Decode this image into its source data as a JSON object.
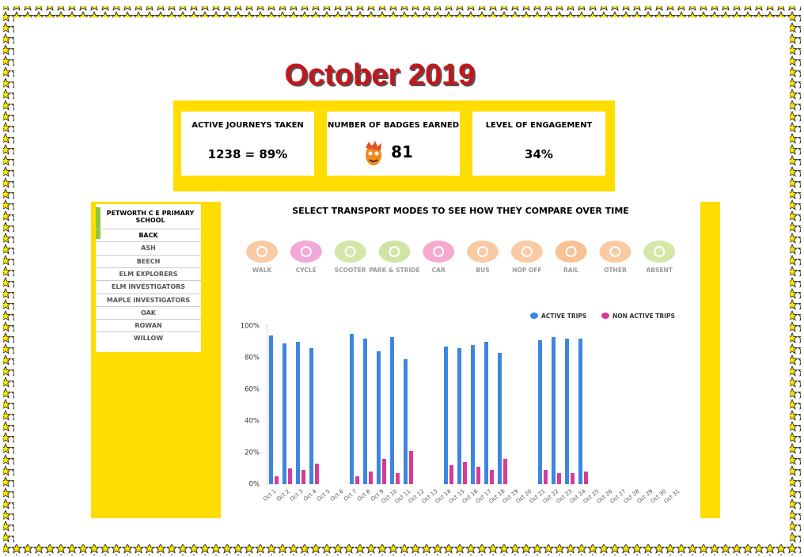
{
  "header": {
    "title": "October 2019"
  },
  "stats": [
    {
      "label": "ACTIVE JOURNEYS TAKEN",
      "value": "1238 = 89%"
    },
    {
      "label": "NUMBER OF BADGES EARNED",
      "value": "81"
    },
    {
      "label": "LEVEL OF ENGAGEMENT",
      "value": "34%"
    }
  ],
  "sidebar": {
    "school": "PETWORTH C E PRIMARY SCHOOL",
    "items": [
      "BACK",
      "ASH",
      "BEECH",
      "ELM EXPLORERS",
      "ELM INVESTIGATORS",
      "MAPLE INVESTIGATORS",
      "OAK",
      "ROWAN",
      "WILLOW"
    ]
  },
  "modes_title": "SELECT TRANSPORT MODES TO SEE HOW THEY COMPARE OVER TIME",
  "modes": [
    {
      "label": "WALK",
      "color": "#f8cba4"
    },
    {
      "label": "CYCLE",
      "color": "#f2a8d8"
    },
    {
      "label": "SCOOTER",
      "color": "#d6e5a8"
    },
    {
      "label": "PARK & STRIDE",
      "color": "#d0e4a6"
    },
    {
      "label": "CAR",
      "color": "#f4abcf"
    },
    {
      "label": "BUS",
      "color": "#f9caa4"
    },
    {
      "label": "HOP OFF",
      "color": "#f9caa4"
    },
    {
      "label": "RAIL",
      "color": "#f8c196"
    },
    {
      "label": "OTHER",
      "color": "#f9caa4"
    },
    {
      "label": "ABSENT",
      "color": "#d6e5a8"
    }
  ],
  "chart_data": {
    "type": "bar",
    "categories": [
      "Oct 1",
      "Oct 2",
      "Oct 3",
      "Oct 4",
      "Oct 5",
      "Oct 6",
      "Oct 7",
      "Oct 8",
      "Oct 9",
      "Oct 10",
      "Oct 11",
      "Oct 12",
      "Oct 13",
      "Oct 14",
      "Oct 15",
      "Oct 16",
      "Oct 17",
      "Oct 18",
      "Oct 19",
      "Oct 20",
      "Oct 21",
      "Oct 22",
      "Oct 23",
      "Oct 24",
      "Oct 25",
      "Oct 26",
      "Oct 27",
      "Oct 28",
      "Oct 29",
      "Oct 30",
      "Oct 31"
    ],
    "series": [
      {
        "name": "ACTIVE TRIPS",
        "color": "#3d86e0",
        "values": [
          94,
          89,
          90,
          86,
          null,
          null,
          95,
          92,
          84,
          93,
          79,
          null,
          null,
          87,
          86,
          88,
          90,
          83,
          null,
          null,
          91,
          93,
          92,
          92,
          null,
          null,
          null,
          null,
          null,
          null,
          null
        ]
      },
      {
        "name": "NON ACTIVE TRIPS",
        "color": "#d63c97",
        "values": [
          5,
          10,
          9,
          13,
          null,
          null,
          5,
          8,
          16,
          7,
          21,
          null,
          null,
          12,
          14,
          11,
          9,
          16,
          null,
          null,
          9,
          7,
          7,
          8,
          null,
          null,
          null,
          null,
          null,
          null,
          null
        ]
      }
    ],
    "ylim": [
      0,
      100
    ],
    "yticks": [
      {
        "value": 0,
        "label": "0%"
      },
      {
        "value": 20,
        "label": "20%"
      },
      {
        "value": 40,
        "label": "40%"
      },
      {
        "value": 60,
        "label": "60%"
      },
      {
        "value": 80,
        "label": "80%"
      },
      {
        "value": 100,
        "label": "100%"
      }
    ],
    "legend": "top-right"
  }
}
